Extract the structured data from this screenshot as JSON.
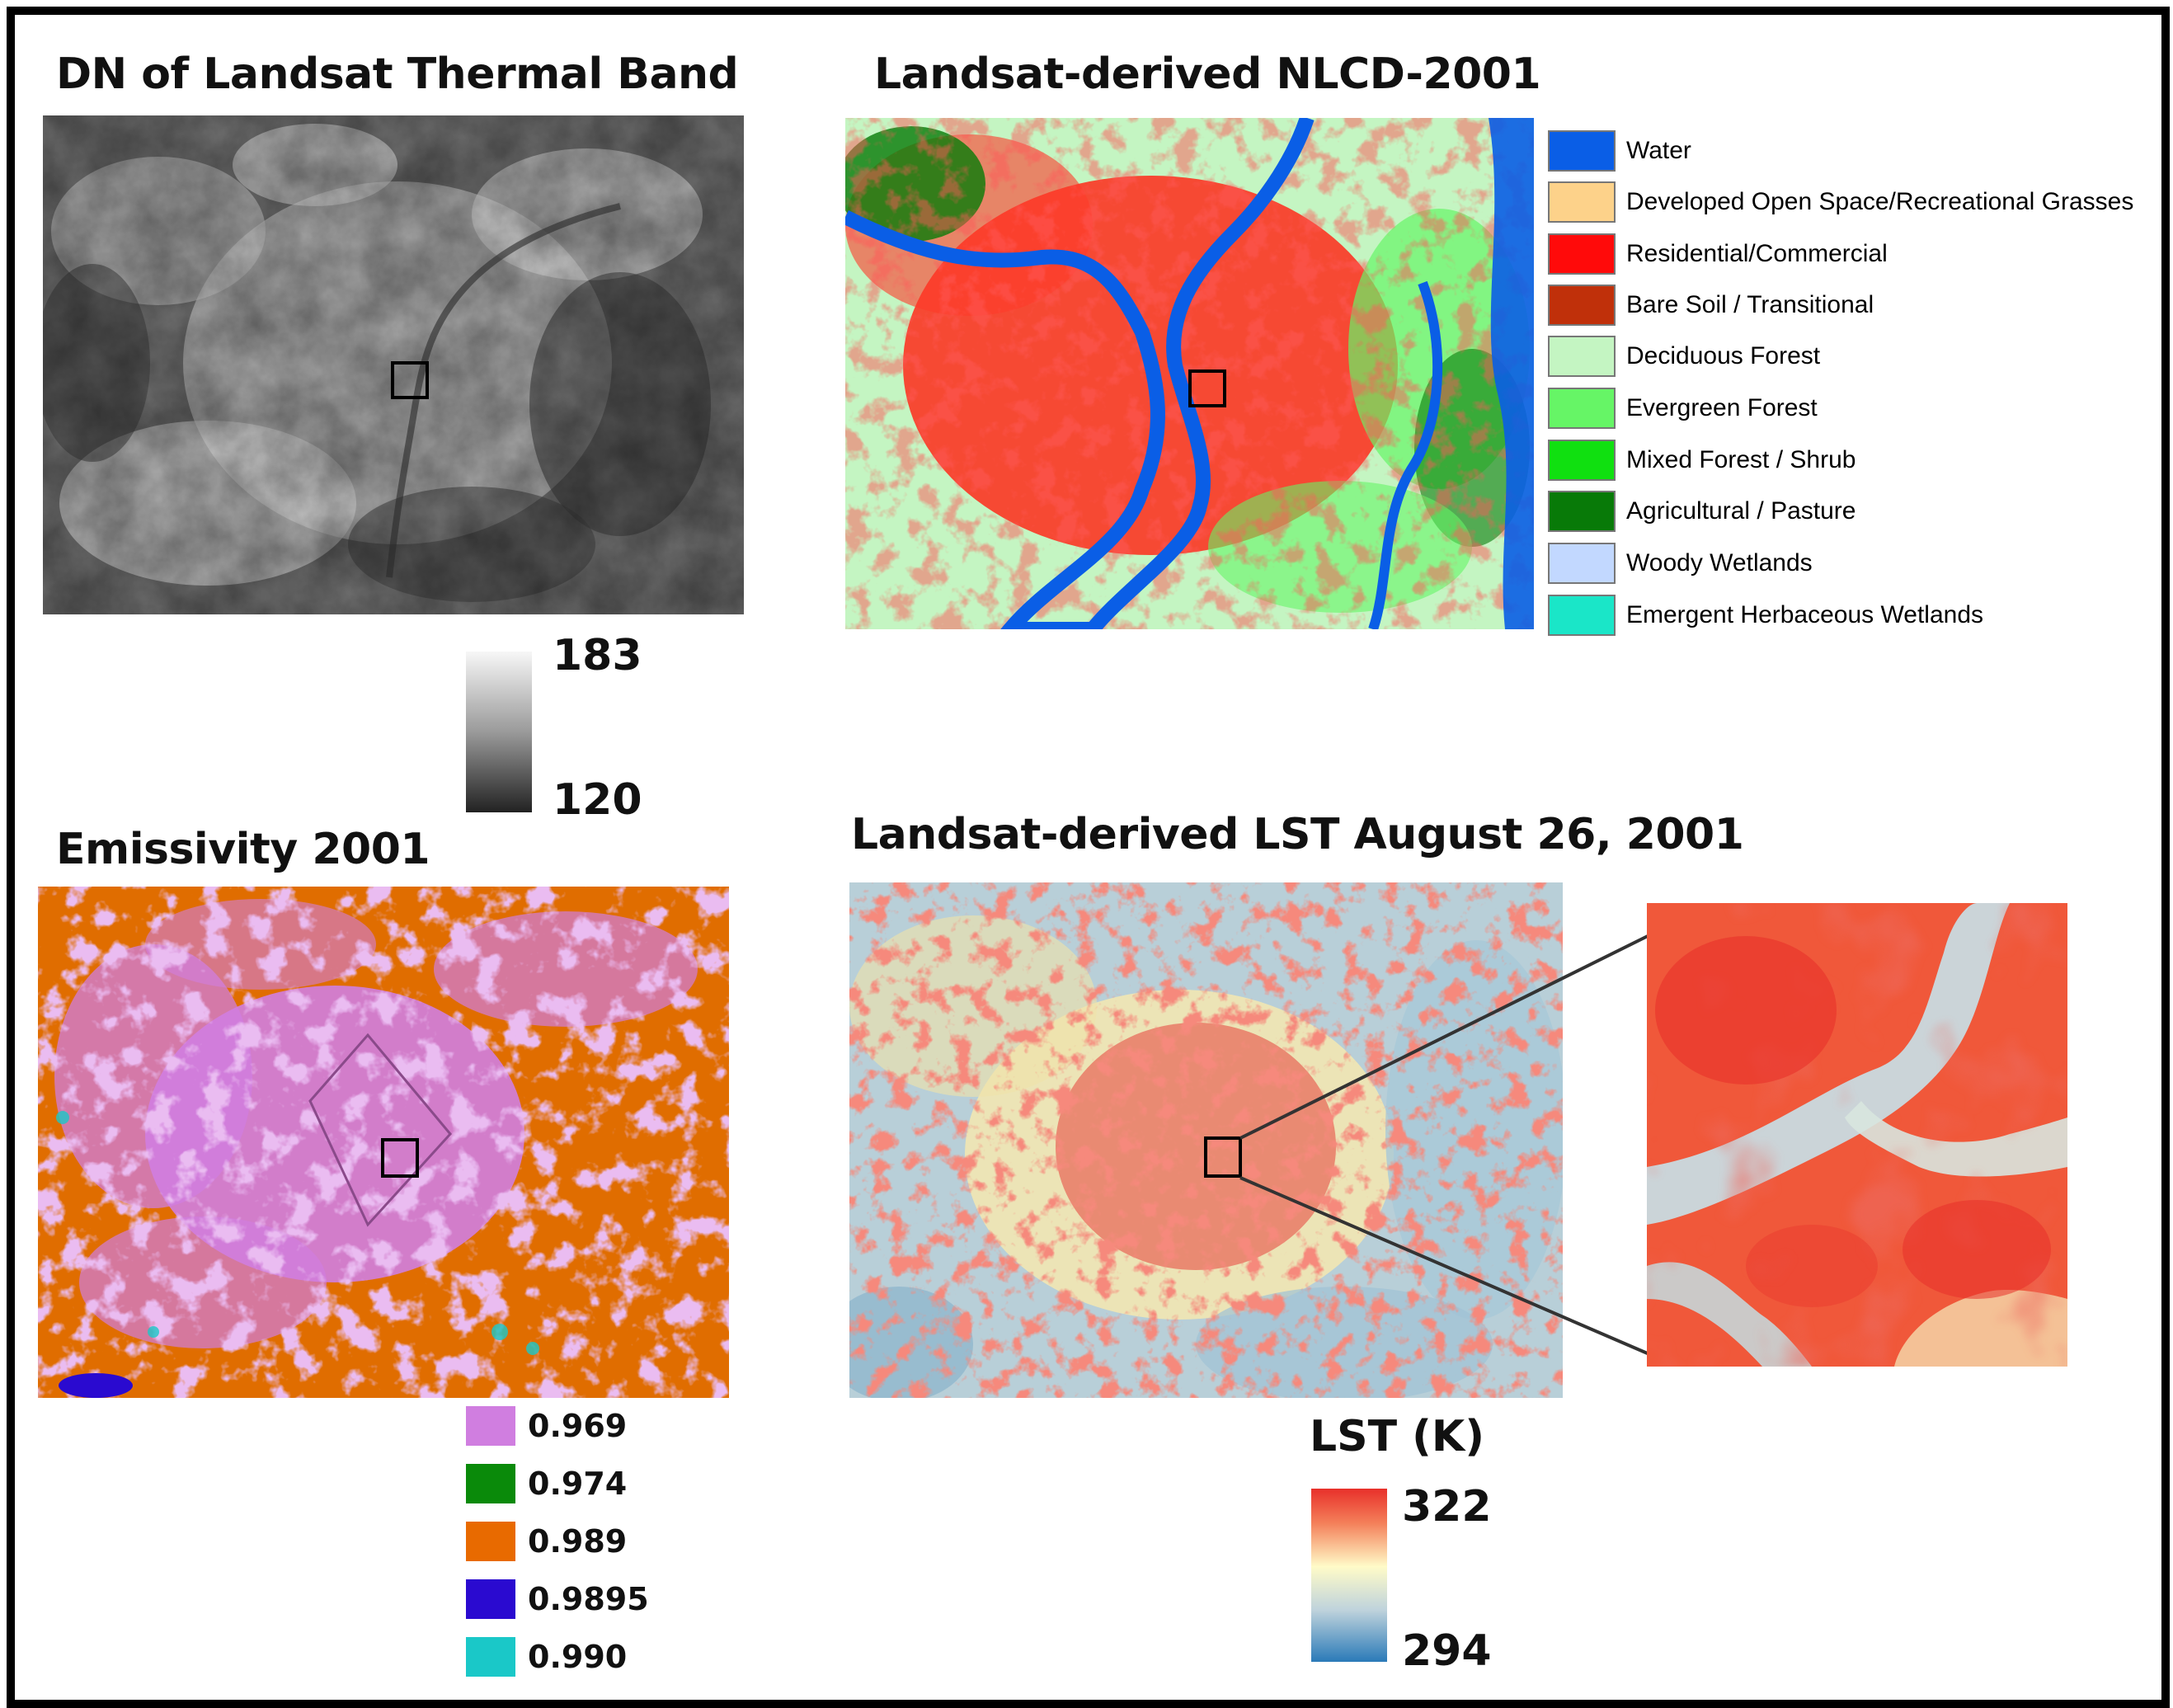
{
  "panels": {
    "thermal": {
      "title": "DN of Landsat Thermal Band",
      "colorbar": {
        "max": "183",
        "min": "120"
      }
    },
    "nlcd": {
      "title": "Landsat-derived NLCD-2001",
      "legend": [
        {
          "label": "Water",
          "color": "#0a5ee6"
        },
        {
          "label": "Developed Open Space/Recreational Grasses",
          "color": "#fdd28a"
        },
        {
          "label": "Residential/Commercial",
          "color": "#ff0a0a"
        },
        {
          "label": "Bare Soil / Transitional",
          "color": "#c0300a"
        },
        {
          "label": "Deciduous Forest",
          "color": "#c4f5c2"
        },
        {
          "label": "Evergreen Forest",
          "color": "#66f566"
        },
        {
          "label": "Mixed Forest / Shrub",
          "color": "#10e010"
        },
        {
          "label": "Agricultural / Pasture",
          "color": "#087a08"
        },
        {
          "label": "Woody Wetlands",
          "color": "#c2d8ff"
        },
        {
          "label": "Emergent Herbaceous Wetlands",
          "color": "#1ae6c8"
        }
      ]
    },
    "emissivity": {
      "title": "Emissivity 2001",
      "legend": [
        {
          "label": "0.969",
          "color": "#d07ee0"
        },
        {
          "label": "0.974",
          "color": "#0a8a0a"
        },
        {
          "label": "0.989",
          "color": "#e86a00"
        },
        {
          "label": "0.9895",
          "color": "#2a0ad0"
        },
        {
          "label": "0.990",
          "color": "#1ac8c8"
        }
      ]
    },
    "lst": {
      "title": "Landsat-derived LST August 26, 2001",
      "colorbar": {
        "title": "LST (K)",
        "max": "322",
        "min": "294"
      }
    }
  },
  "colors": {
    "thermal_dark": "#2a2a2a",
    "thermal_light": "#f2f2f2",
    "lst_hot": "#e8302a",
    "lst_mid": "#fffbc8",
    "lst_cool": "#2a7ab8"
  }
}
